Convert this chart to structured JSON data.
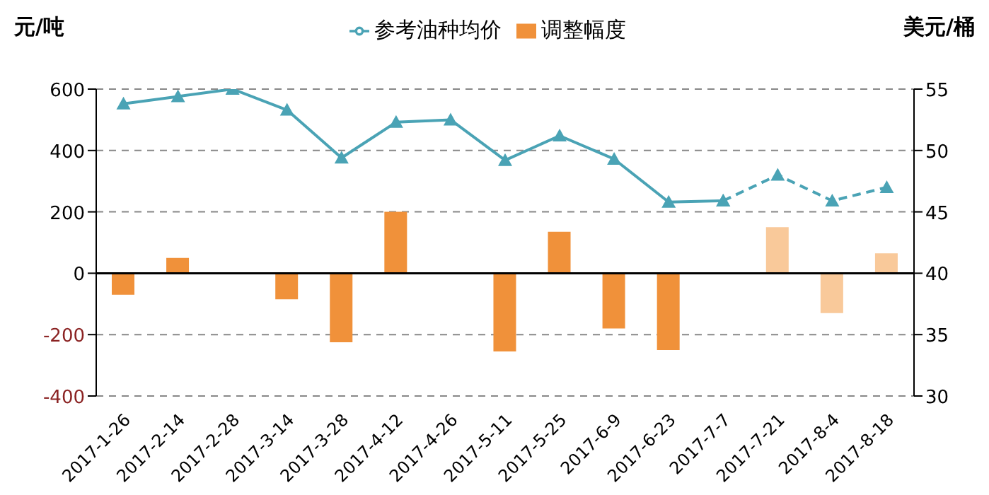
{
  "chart_data": {
    "type": "bar",
    "ylabel": "元/吨",
    "y2label": "美元/桶",
    "categories": [
      "2017-1-26",
      "2017-2-14",
      "2017-2-28",
      "2017-3-14",
      "2017-3-28",
      "2017-4-12",
      "2017-4-26",
      "2017-5-11",
      "2017-5-25",
      "2017-6-9",
      "2017-6-23",
      "2017-7-7",
      "2017-7-21",
      "2017-8-4",
      "2017-8-18"
    ],
    "series": [
      {
        "name": "调整幅度",
        "color": "#f0913a",
        "colors": [
          "#f0913a",
          "#f0913a",
          "#f0913a",
          "#f0913a",
          "#f0913a",
          "#f0913a",
          "#f0913a",
          "#f0913a",
          "#f0913a",
          "#f0913a",
          "#f0913a",
          "#f0913a",
          "#f9c99a",
          "#f9c99a",
          "#f9c99a"
        ],
        "values": [
          -70,
          50,
          0,
          -85,
          -225,
          200,
          0,
          -255,
          135,
          -180,
          -250,
          0,
          150,
          -130,
          65
        ]
      },
      {
        "name": "参考油种均价",
        "type": "line",
        "axis": "y2",
        "color": "#4aa3b5",
        "marker": "triangle",
        "line_style": "solid",
        "values": [
          53.8,
          54.4,
          55,
          53.3,
          49.4,
          52.3,
          52.5,
          49.2,
          51.2,
          49.3,
          45.8,
          45.9,
          null,
          null,
          null
        ]
      },
      {
        "type": "line",
        "axis": "y2",
        "color": "#4aa3b5",
        "marker": "triangle",
        "line_style": "dashed",
        "values": [
          null,
          null,
          null,
          null,
          null,
          null,
          null,
          null,
          null,
          null,
          null,
          45.9,
          48,
          45.9,
          47
        ]
      }
    ],
    "ylim": [
      -400,
      600
    ],
    "yticks": [
      -400,
      -200,
      0,
      200,
      400,
      600
    ],
    "y2lim": [
      30,
      55
    ],
    "y2ticks": [
      30,
      35,
      40,
      45,
      50,
      55
    ],
    "ref_lines": [
      {
        "axis": "y",
        "value": 0,
        "color": "#000000",
        "line_style": "solid"
      }
    ],
    "grid": "y",
    "legend": "top"
  }
}
